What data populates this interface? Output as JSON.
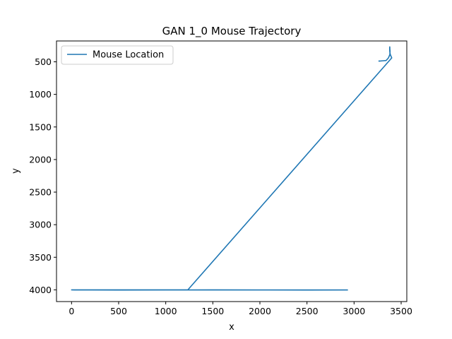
{
  "chart_data": {
    "type": "line",
    "title": "GAN 1_0 Mouse Trajectory",
    "xlabel": "x",
    "ylabel": "y",
    "xlim": [
      -160,
      3560
    ],
    "ylim": [
      4180,
      180
    ],
    "y_inverted": true,
    "xticks": [
      0,
      500,
      1000,
      1500,
      2000,
      2500,
      3000,
      3500
    ],
    "yticks": [
      500,
      1000,
      1500,
      2000,
      2500,
      3000,
      3500,
      4000
    ],
    "xtick_labels": [
      "0",
      "500",
      "1000",
      "1500",
      "2000",
      "2500",
      "3000",
      "3500"
    ],
    "ytick_labels": [
      "500",
      "1000",
      "1500",
      "2000",
      "2500",
      "3000",
      "3500",
      "4000"
    ],
    "grid": false,
    "legend": {
      "placement": "top-left",
      "entries": [
        "Mouse Location"
      ]
    },
    "series": [
      {
        "name": "Mouse Location",
        "color": "#1f77b4",
        "x": [
          3270,
          3265,
          3300,
          3340,
          3365,
          3380,
          3382,
          3380,
          3379,
          3378,
          3380,
          3385,
          3400,
          1235,
          0,
          30,
          500,
          1000,
          1500,
          2000,
          2500,
          2930,
          2500,
          2000,
          1500,
          1240,
          1500,
          2000,
          2500,
          2930
        ],
        "y": [
          480,
          490,
          485,
          480,
          440,
          390,
          340,
          300,
          270,
          300,
          350,
          390,
          440,
          4000,
          4000,
          4002,
          4003,
          4002,
          4000,
          4001,
          4002,
          4002,
          4003,
          4002,
          4001,
          4001,
          4000,
          4001,
          4002,
          4001
        ]
      }
    ]
  }
}
